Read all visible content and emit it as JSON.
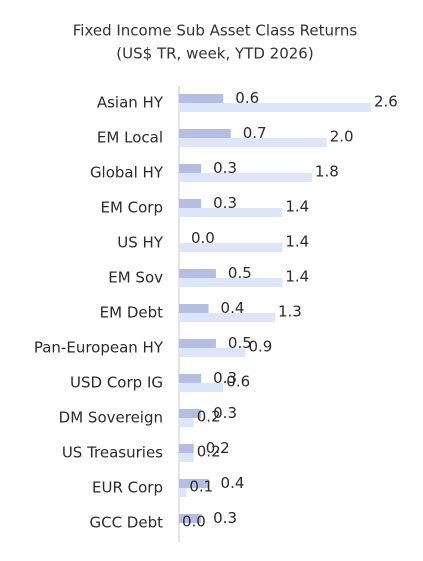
{
  "chart_data": {
    "type": "bar",
    "orientation": "horizontal",
    "title": "Fixed Income Sub Asset Class Returns",
    "subtitle": "(US$ TR, week, YTD 2026)",
    "categories": [
      "Asian HY",
      "EM Local",
      "Global HY",
      "EM Corp",
      "US HY",
      "EM Sov",
      "EM Debt",
      "Pan-European HY",
      "USD Corp IG",
      "DM Sovereign",
      "US Treasuries",
      "EUR Corp",
      "GCC Debt"
    ],
    "series": [
      {
        "color": "#b5bde2",
        "values": [
          0.6,
          0.7,
          0.3,
          0.3,
          0.0,
          0.5,
          0.4,
          0.5,
          0.3,
          0.3,
          0.2,
          0.4,
          0.3
        ],
        "value_labels": [
          "0.6",
          "0.7",
          "0.3",
          "0.3",
          "0.0",
          "0.5",
          "0.4",
          "0.5",
          "0.3",
          "0.3",
          "0.2",
          "0.4",
          "0.3"
        ]
      },
      {
        "color": "#dde5f8",
        "values": [
          2.6,
          2.0,
          1.8,
          1.4,
          1.4,
          1.4,
          1.3,
          0.9,
          0.6,
          0.2,
          0.2,
          0.1,
          0.0
        ],
        "value_labels": [
          "2.6",
          "2.0",
          "1.8",
          "1.4",
          "1.4",
          "1.4",
          "1.3",
          "0.9",
          "0.6",
          "0.2",
          "0.2",
          "0.1",
          "0.0"
        ]
      }
    ]
  }
}
